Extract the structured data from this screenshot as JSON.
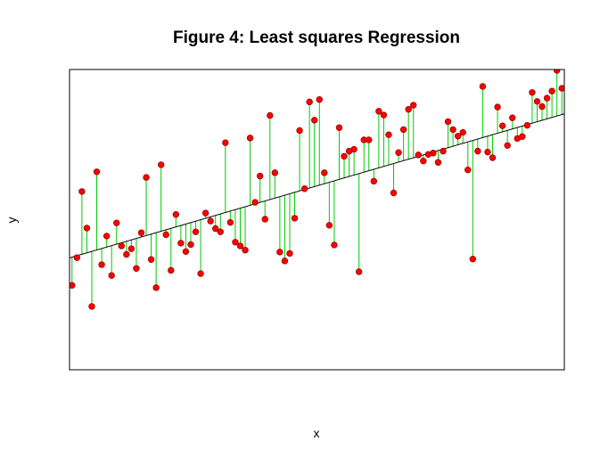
{
  "chart_data": {
    "type": "scatter",
    "title": "Figure 4: Least squares Regression",
    "xlabel": "x",
    "ylabel": "y",
    "axes_shown": false,
    "grid": false,
    "regression_line": {
      "x": [
        1,
        100
      ],
      "y": [
        -1.0,
        2.04
      ],
      "color": "#000000"
    },
    "residual_color": "#00cc00",
    "point_color": "#ff0000",
    "point_outline": "#990000",
    "points": {
      "x": [
        1,
        2,
        3,
        4,
        5,
        6,
        7,
        8,
        9,
        10,
        11,
        12,
        13,
        14,
        15,
        16,
        17,
        18,
        19,
        20,
        21,
        22,
        23,
        24,
        25,
        26,
        27,
        28,
        29,
        30,
        31,
        32,
        33,
        34,
        35,
        36,
        37,
        38,
        39,
        40,
        41,
        42,
        43,
        44,
        45,
        46,
        47,
        48,
        49,
        50,
        51,
        52,
        53,
        54,
        55,
        56,
        57,
        58,
        59,
        60,
        61,
        62,
        63,
        64,
        65,
        66,
        67,
        68,
        69,
        70,
        71,
        72,
        73,
        74,
        75,
        76,
        77,
        78,
        79,
        80,
        81,
        82,
        83,
        84,
        85,
        86,
        87,
        88,
        89,
        90,
        91,
        92,
        93,
        94,
        95,
        96,
        97,
        98,
        99,
        100
      ],
      "y": [
        -1.6,
        -1.01,
        0.4,
        -0.38,
        -2.05,
        0.82,
        -1.16,
        -0.55,
        -1.39,
        -0.27,
        -0.76,
        -0.94,
        -0.82,
        -1.24,
        -0.48,
        0.7,
        -1.05,
        -1.65,
        0.97,
        -0.52,
        -1.28,
        -0.09,
        -0.7,
        -0.88,
        -0.73,
        -0.46,
        -1.35,
        -0.06,
        -0.23,
        -0.39,
        -0.46,
        1.44,
        -0.26,
        -0.68,
        -0.76,
        -0.85,
        1.54,
        0.17,
        0.73,
        -0.19,
        2.02,
        0.8,
        -0.89,
        -1.08,
        -0.92,
        -0.17,
        1.7,
        0.46,
        2.31,
        1.92,
        2.36,
        0.8,
        -0.32,
        -0.74,
        1.76,
        1.15,
        1.26,
        1.3,
        -1.31,
        1.5,
        1.5,
        0.62,
        2.11,
        2.03,
        1.61,
        0.37,
        1.23,
        1.72,
        2.15,
        2.24,
        1.18,
        1.05,
        1.19,
        1.22,
        1.02,
        1.26,
        1.89,
        1.72,
        1.58,
        1.66,
        0.86,
        -1.04,
        1.26,
        2.64,
        1.24,
        1.12,
        2.2,
        1.8,
        1.38,
        1.97,
        1.53,
        1.57,
        1.81,
        2.51,
        2.32,
        2.21,
        2.39,
        2.54,
        2.98,
        2.6
      ]
    }
  }
}
